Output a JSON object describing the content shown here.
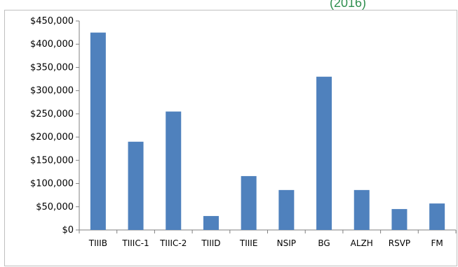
{
  "header": {
    "fragment_text": "(2016)"
  },
  "colors": {
    "bar": "#4f81bd",
    "axis": "#808080",
    "fragment": "#2f8f4f"
  },
  "chart_data": {
    "type": "bar",
    "title": "",
    "xlabel": "",
    "ylabel": "",
    "categories": [
      "TIIIB",
      "TIIIC-1",
      "TIIIC-2",
      "TIIID",
      "TIIIE",
      "NSIP",
      "BG",
      "ALZH",
      "RSVP",
      "FM"
    ],
    "values": [
      425000,
      190000,
      255000,
      30000,
      116000,
      86000,
      330000,
      86000,
      45000,
      57000
    ],
    "ylim": [
      0,
      450000
    ],
    "yticks": [
      0,
      50000,
      100000,
      150000,
      200000,
      250000,
      300000,
      350000,
      400000,
      450000
    ],
    "ytick_labels": [
      "$0",
      "$50,000",
      "$100,000",
      "$150,000",
      "$200,000",
      "$250,000",
      "$300,000",
      "$350,000",
      "$400,000",
      "$450,000"
    ],
    "grid": false,
    "legend": "none"
  }
}
